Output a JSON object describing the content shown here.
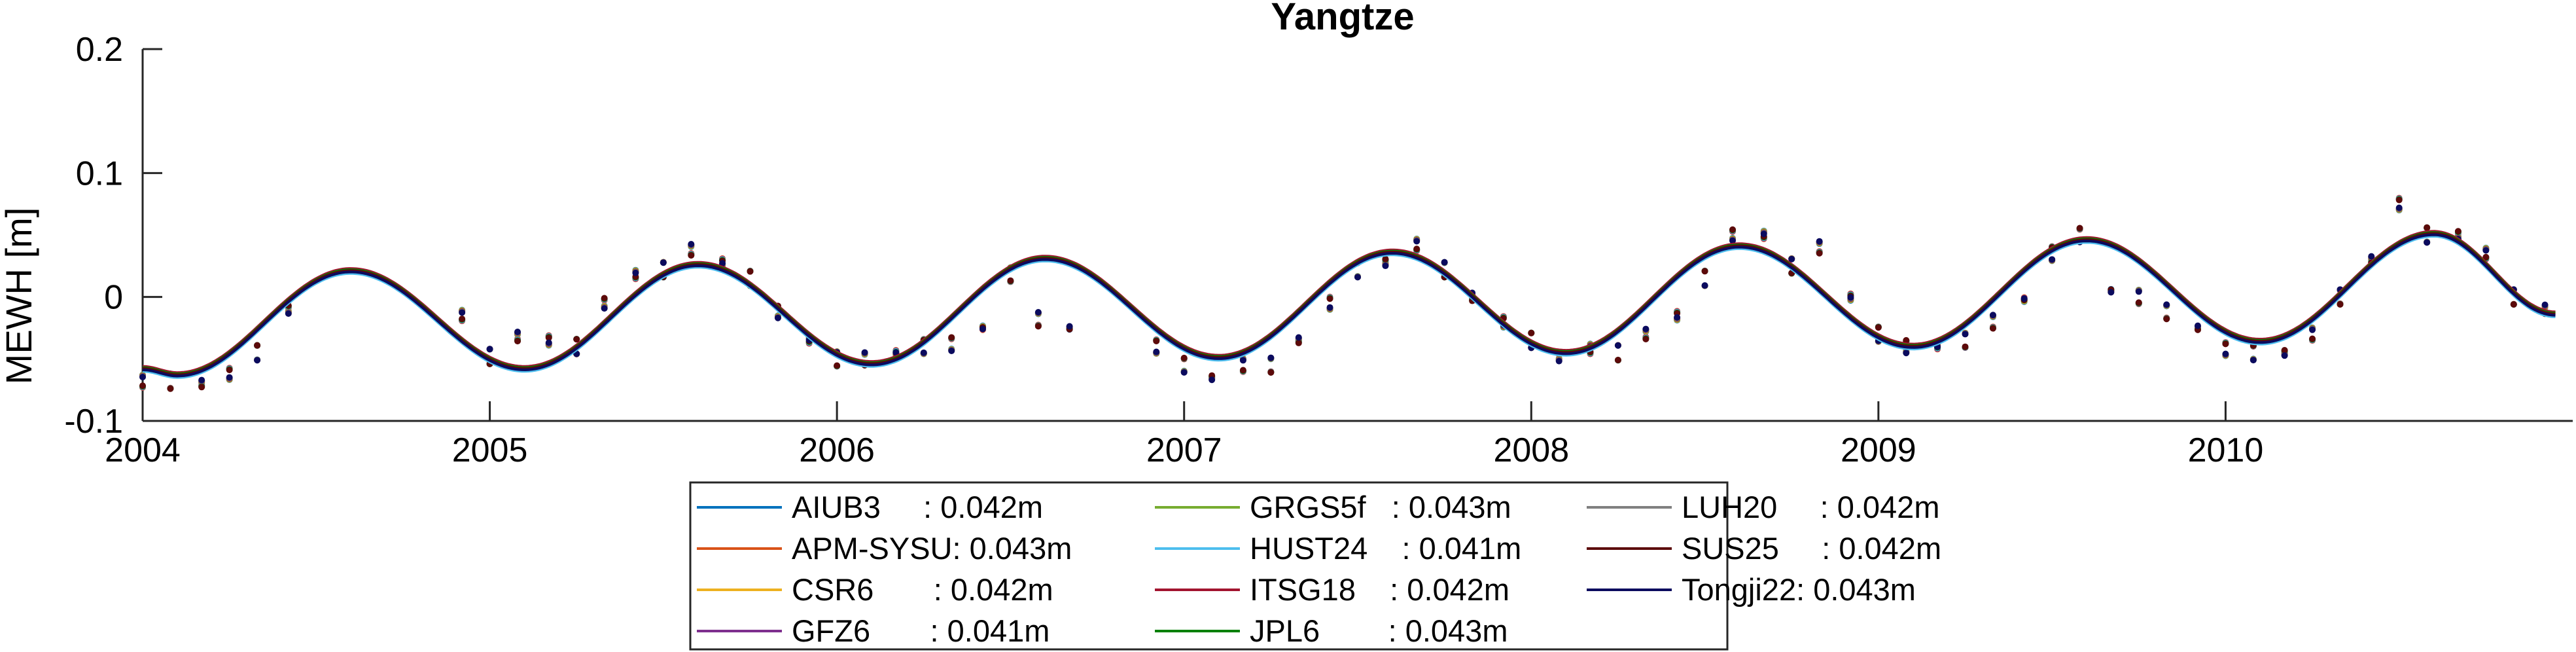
{
  "chart_data": {
    "type": "line",
    "title": "Yangtze",
    "xlabel": "",
    "ylabel": "MEWH [m]",
    "xlim": [
      2004,
      2011
    ],
    "ylim": [
      -0.1,
      0.2
    ],
    "x_ticks": [
      "2004",
      "2005",
      "2006",
      "2007",
      "2008",
      "2009",
      "2010"
    ],
    "y_ticks": [
      "-0.1",
      "0",
      "0.1",
      "0.2"
    ],
    "grid": false,
    "legend_position": "bottom",
    "series": [
      {
        "name": "AIUB3",
        "rmse": "0.042m",
        "label": "AIUB3     : 0.042m",
        "color": "#0072BD"
      },
      {
        "name": "APM-SYSU",
        "rmse": "0.043m",
        "label": "APM-SYSU: 0.043m",
        "color": "#D95319"
      },
      {
        "name": "CSR6",
        "rmse": "0.042m",
        "label": "CSR6       : 0.042m",
        "color": "#EDB120"
      },
      {
        "name": "GFZ6",
        "rmse": "0.041m",
        "label": "GFZ6       : 0.041m",
        "color": "#7E2F8E"
      },
      {
        "name": "GRGS5f",
        "rmse": "0.043m",
        "label": "GRGS5f   : 0.043m",
        "color": "#77AC30"
      },
      {
        "name": "HUST24",
        "rmse": "0.041m",
        "label": "HUST24    : 0.041m",
        "color": "#4DBEEE"
      },
      {
        "name": "ITSG18",
        "rmse": "0.042m",
        "label": "ITSG18    : 0.042m",
        "color": "#A2142F"
      },
      {
        "name": "JPL6",
        "rmse": "0.043m",
        "label": "JPL6        : 0.043m",
        "color": "#008000"
      },
      {
        "name": "LUH20",
        "rmse": "0.042m",
        "label": "LUH20     : 0.042m",
        "color": "#808080"
      },
      {
        "name": "SUS25",
        "rmse": "0.042m",
        "label": "SUS25     : 0.042m",
        "color": "#5C0A0A"
      },
      {
        "name": "Tongji22",
        "rmse": "0.043m",
        "label": "Tongji22: 0.043m",
        "color": "#0B0B5E"
      }
    ],
    "fit_curve": {
      "description_values": {
        "minima": [
          [
            2004.1,
            -0.063
          ],
          [
            2005.1,
            -0.058
          ],
          [
            2006.1,
            -0.054
          ],
          [
            2007.1,
            -0.049
          ],
          [
            2008.1,
            -0.045
          ],
          [
            2009.1,
            -0.04
          ],
          [
            2010.1,
            -0.036
          ]
        ],
        "maxima": [
          [
            2004.6,
            0.021
          ],
          [
            2005.6,
            0.026
          ],
          [
            2006.6,
            0.031
          ],
          [
            2007.6,
            0.036
          ],
          [
            2008.6,
            0.041
          ],
          [
            2009.6,
            0.046
          ],
          [
            2010.6,
            0.051
          ]
        ],
        "end": [
          2010.95,
          -0.014
        ]
      }
    },
    "observations": {
      "x": [
        2004.0,
        2004.08,
        2004.17,
        2004.25,
        2004.33,
        2004.42,
        2004.92,
        2005.0,
        2005.08,
        2005.17,
        2005.25,
        2005.33,
        2005.42,
        2005.5,
        2005.58,
        2005.67,
        2005.75,
        2005.83,
        2005.92,
        2006.0,
        2006.08,
        2006.17,
        2006.25,
        2006.33,
        2006.42,
        2006.5,
        2006.58,
        2006.67,
        2006.92,
        2007.0,
        2007.08,
        2007.17,
        2007.25,
        2007.33,
        2007.42,
        2007.5,
        2007.58,
        2007.67,
        2007.75,
        2007.83,
        2007.92,
        2008.0,
        2008.08,
        2008.17,
        2008.25,
        2008.33,
        2008.42,
        2008.5,
        2008.58,
        2008.67,
        2008.75,
        2008.83,
        2008.92,
        2009.0,
        2009.08,
        2009.17,
        2009.25,
        2009.33,
        2009.42,
        2009.5,
        2009.58,
        2009.67,
        2009.75,
        2009.83,
        2009.92,
        2010.0,
        2010.08,
        2010.17,
        2010.25,
        2010.33,
        2010.42,
        2010.5,
        2010.58,
        2010.67,
        2010.75,
        2010.83,
        2010.92
      ],
      "y": [
        -0.068,
        -0.068,
        -0.07,
        -0.062,
        -0.045,
        -0.01,
        -0.015,
        -0.048,
        -0.032,
        -0.035,
        -0.04,
        -0.005,
        0.018,
        0.022,
        0.038,
        0.028,
        0.015,
        -0.012,
        -0.035,
        -0.05,
        -0.05,
        -0.045,
        -0.04,
        -0.038,
        -0.025,
        0.018,
        -0.018,
        -0.025,
        -0.04,
        -0.055,
        -0.065,
        -0.055,
        -0.055,
        -0.035,
        -0.005,
        0.022,
        0.028,
        0.042,
        0.022,
        0.0,
        -0.02,
        -0.035,
        -0.048,
        -0.042,
        -0.045,
        -0.03,
        -0.015,
        0.015,
        0.05,
        0.05,
        0.025,
        0.04,
        0.0,
        -0.03,
        -0.04,
        -0.04,
        -0.035,
        -0.02,
        -0.002,
        0.035,
        0.05,
        0.005,
        0.0,
        -0.012,
        -0.025,
        -0.042,
        -0.045,
        -0.045,
        -0.03,
        0.0,
        0.03,
        0.075,
        0.05,
        0.05,
        0.035,
        0.0,
        -0.01
      ]
    }
  }
}
